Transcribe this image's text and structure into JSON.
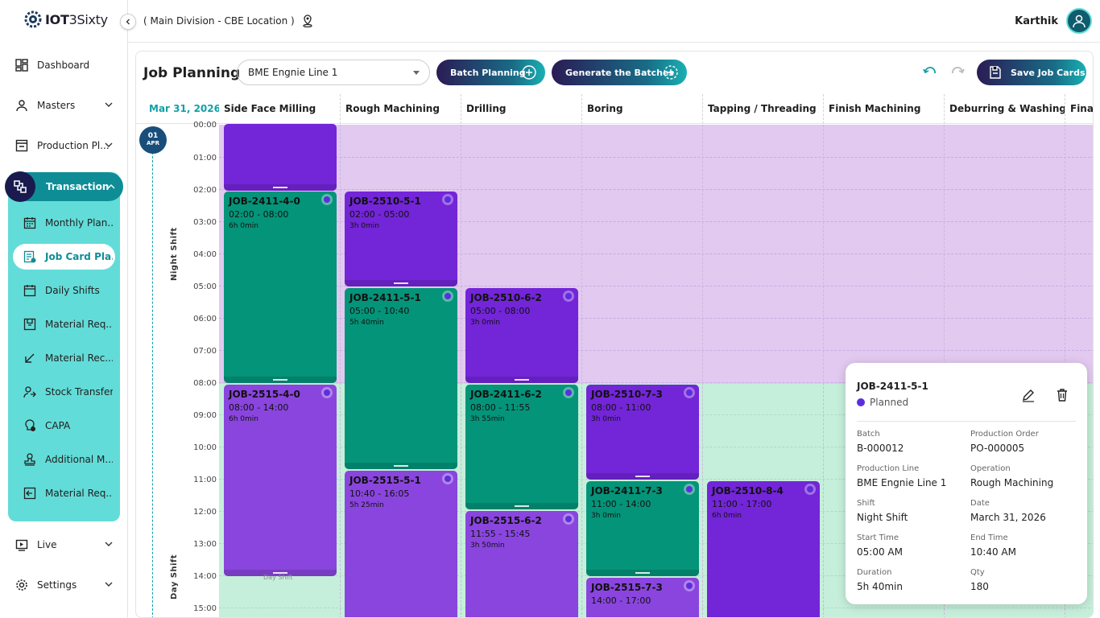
{
  "app": {
    "logo_bold": "IOT",
    "logo_rest": "3Sixty"
  },
  "header": {
    "location": "( Main Division - CBE Location )",
    "user_name": "Karthik"
  },
  "sidebar": {
    "items": [
      {
        "label": "Dashboard",
        "icon": "dashboard-icon"
      },
      {
        "label": "Masters",
        "icon": "user-icon"
      },
      {
        "label": "Production Pl...",
        "icon": "production-icon"
      },
      {
        "label": "Transaction",
        "icon": "transaction-icon"
      },
      {
        "label": "Live",
        "icon": "live-icon"
      },
      {
        "label": "Settings",
        "icon": "gear-icon"
      }
    ],
    "transaction_sub": [
      {
        "label": "Monthly Plan..."
      },
      {
        "label": "Job Card Pla..."
      },
      {
        "label": "Daily Shifts"
      },
      {
        "label": "Material Req..."
      },
      {
        "label": "Material Rec..."
      },
      {
        "label": "Stock Transfer"
      },
      {
        "label": "CAPA"
      },
      {
        "label": "Additional M..."
      },
      {
        "label": "Material Req..."
      }
    ]
  },
  "toolbar": {
    "title": "Job Planning",
    "line_select": "BME  Engnie Line 1",
    "batch_planning": "Batch Planning",
    "generate_batches": "Generate the Batches",
    "save_job_cards": "Save Job Cards"
  },
  "grid": {
    "date": "Mar 31, 2026",
    "badge_day": "01",
    "badge_month": "APR",
    "columns": [
      "Side Face Milling",
      "Rough Machining",
      "Drilling",
      "Boring",
      "Tapping / Threading",
      "Finish Machining",
      "Deburring & Washing",
      "Final"
    ],
    "times": [
      "00:00",
      "01:00",
      "02:00",
      "03:00",
      "04:00",
      "05:00",
      "06:00",
      "07:00",
      "08:00",
      "09:00",
      "10:00",
      "11:00",
      "12:00",
      "13:00",
      "14:00",
      "15:00"
    ],
    "night_label": "Night Shift",
    "day_label": "Day Shift",
    "ghost_day": "Day Shift"
  },
  "jobs": [
    {
      "id": "",
      "time": "",
      "dur": ""
    },
    {
      "id": "JOB-2411-4-0",
      "time": "02:00 - 08:00",
      "dur": "6h 0min"
    },
    {
      "id": "JOB-2515-4-0",
      "time": "08:00 - 14:00",
      "dur": "6h 0min"
    },
    {
      "id": "JOB-2510-5-1",
      "time": "02:00 - 05:00",
      "dur": "3h 0min"
    },
    {
      "id": "JOB-2411-5-1",
      "time": "05:00 - 10:40",
      "dur": "5h 40min"
    },
    {
      "id": "JOB-2515-5-1",
      "time": "10:40 - 16:05",
      "dur": "5h 25min"
    },
    {
      "id": "JOB-2510-6-2",
      "time": "05:00 - 08:00",
      "dur": "3h 0min"
    },
    {
      "id": "JOB-2411-6-2",
      "time": "08:00 - 11:55",
      "dur": "3h 55min"
    },
    {
      "id": "JOB-2515-6-2",
      "time": "11:55 - 15:45",
      "dur": "3h 50min"
    },
    {
      "id": "JOB-2510-7-3",
      "time": "08:00 - 11:00",
      "dur": "3h 0min"
    },
    {
      "id": "JOB-2411-7-3",
      "time": "11:00 - 14:00",
      "dur": "3h 0min"
    },
    {
      "id": "JOB-2515-7-3",
      "time": "14:00 - 17:00",
      "dur": ""
    },
    {
      "id": "JOB-2510-8-4",
      "time": "11:00 - 17:00",
      "dur": "6h 0min"
    }
  ],
  "detail": {
    "job": "JOB-2411-5-1",
    "status": "Planned",
    "fields": [
      {
        "label": "Batch",
        "value": "B-000012"
      },
      {
        "label": "Production Order",
        "value": "PO-000005"
      },
      {
        "label": "Production Line",
        "value": "BME Engnie Line 1"
      },
      {
        "label": "Operation",
        "value": "Rough Machining"
      },
      {
        "label": "Shift",
        "value": "Night Shift"
      },
      {
        "label": "Date",
        "value": "March 31, 2026"
      },
      {
        "label": "Start Time",
        "value": "05:00 AM"
      },
      {
        "label": "End Time",
        "value": "10:40 AM"
      },
      {
        "label": "Duration",
        "value": "5h 40min"
      },
      {
        "label": "Qty",
        "value": "180"
      }
    ]
  },
  "colors": {
    "accent": "#13a0a8",
    "green_job": "#049479",
    "purple_job": "#7325d8",
    "night_bg": "#e2c9f0",
    "day_bg": "#c6efdb",
    "panel": "#62dcd8"
  }
}
